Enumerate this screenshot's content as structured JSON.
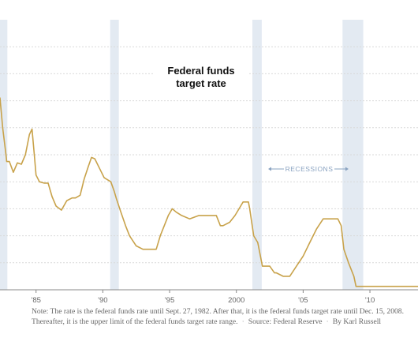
{
  "chart_data": {
    "type": "line",
    "title": "Federal funds\ntarget rate",
    "xlabel": "",
    "ylabel": "",
    "x_ticks": [
      {
        "year": 1985,
        "label": "'85"
      },
      {
        "year": 1990,
        "label": "'90"
      },
      {
        "year": 1995,
        "label": "'95"
      },
      {
        "year": 2000,
        "label": "2000"
      },
      {
        "year": 2005,
        "label": "'05"
      },
      {
        "year": 2010,
        "label": "'10"
      }
    ],
    "xlim": [
      1982.3,
      2013.6
    ],
    "ylim": [
      0,
      20
    ],
    "y_gridlines": [
      2,
      4,
      6,
      8,
      10,
      12,
      14,
      16,
      18
    ],
    "grid": true,
    "recessions": [
      {
        "start": 1981.55,
        "end": 1982.85
      },
      {
        "start": 1990.55,
        "end": 1991.2
      },
      {
        "start": 2001.2,
        "end": 2001.9
      },
      {
        "start": 2007.95,
        "end": 2009.5
      }
    ],
    "recessions_label": "RECESSIONS",
    "series": [
      {
        "x": [
          1982.0,
          1982.3,
          1982.5,
          1982.75,
          1982.8,
          1983.0,
          1983.3,
          1983.6,
          1983.9,
          1984.2,
          1984.5,
          1984.7,
          1984.85,
          1985.0,
          1985.25,
          1985.6,
          1985.9,
          1986.2,
          1986.5,
          1986.9,
          1987.3,
          1987.7,
          1987.95,
          1988.3,
          1988.6,
          1988.9,
          1989.15,
          1989.4,
          1989.8,
          1990.1,
          1990.6,
          1990.85,
          1991.0,
          1991.3,
          1991.7,
          1992.0,
          1992.5,
          1993.0,
          1993.6,
          1994.0,
          1994.3,
          1994.6,
          1994.9,
          1995.2,
          1995.5,
          1995.9,
          1996.5,
          1997.2,
          1998.5,
          1998.8,
          1999.0,
          1999.5,
          1999.9,
          2000.2,
          2000.5,
          2000.9,
          2001.0,
          2001.3,
          2001.6,
          2001.8,
          2001.95,
          2002.5,
          2002.85,
          2003.0,
          2003.5,
          2004.0,
          2004.5,
          2005.0,
          2005.5,
          2006.0,
          2006.5,
          2007.0,
          2007.6,
          2007.85,
          2008.05,
          2008.4,
          2008.8,
          2008.96,
          2009.2,
          2013.6
        ],
        "y": [
          14.5,
          14.2,
          12.0,
          10.0,
          9.5,
          9.5,
          8.7,
          9.4,
          9.3,
          10.0,
          11.5,
          11.9,
          10.2,
          8.5,
          8.0,
          7.9,
          7.9,
          6.9,
          6.2,
          5.9,
          6.6,
          6.8,
          6.8,
          7.0,
          8.2,
          9.1,
          9.8,
          9.7,
          8.9,
          8.3,
          8.0,
          7.3,
          6.8,
          5.9,
          4.75,
          4.0,
          3.25,
          3.0,
          3.0,
          3.0,
          4.0,
          4.75,
          5.5,
          6.0,
          5.75,
          5.5,
          5.25,
          5.5,
          5.5,
          4.75,
          4.75,
          5.0,
          5.5,
          6.0,
          6.5,
          6.5,
          6.0,
          4.0,
          3.5,
          2.5,
          1.75,
          1.75,
          1.25,
          1.25,
          1.0,
          1.0,
          1.75,
          2.5,
          3.5,
          4.5,
          5.25,
          5.25,
          5.25,
          4.75,
          3.0,
          2.0,
          1.0,
          0.25,
          0.25,
          0.25
        ],
        "color": "#c8a24a"
      }
    ]
  },
  "note": {
    "text": "Note: The rate is the federal funds rate until Sept. 27, 1982. After that, it is the federal funds target rate until Dec. 15, 2008. Thereafter, it is the upper limit of the federal funds target rate range.",
    "source": "Source: Federal Reserve",
    "byline": "By Karl Russell"
  },
  "colors": {
    "line": "#c8a24a",
    "recession_band": "#e3eaf2",
    "recession_label": "#8aa3c1",
    "grid": "#d9d9d9",
    "axis": "#888888",
    "tick_label": "#666666",
    "title": "#111111"
  }
}
